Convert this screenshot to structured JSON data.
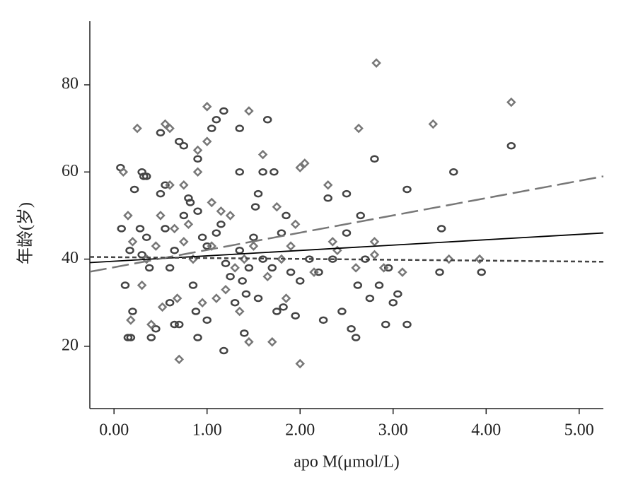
{
  "chart_data": {
    "type": "scatter",
    "x_label": "apo M(μmol/L)",
    "y_label": "年龄(岁)",
    "xlim": [
      -0.26,
      5.26
    ],
    "ylim": [
      5.7,
      94.6
    ],
    "xticks": [
      {
        "value": 0,
        "label": "0.00"
      },
      {
        "value": 1,
        "label": "1.00"
      },
      {
        "value": 2,
        "label": "2.00"
      },
      {
        "value": 3,
        "label": "3.00"
      },
      {
        "value": 4,
        "label": "4.00"
      },
      {
        "value": 5,
        "label": "5.00"
      }
    ],
    "yticks": [
      20,
      40,
      60,
      80
    ],
    "series": [
      {
        "marker": "circle",
        "color": "#444444",
        "x": [
          0.07,
          0.08,
          0.12,
          0.15,
          0.17,
          0.18,
          0.2,
          0.22,
          0.28,
          0.3,
          0.32,
          0.35,
          0.3,
          0.35,
          0.38,
          0.4,
          0.45,
          0.5,
          0.5,
          0.55,
          0.55,
          0.6,
          0.6,
          0.65,
          0.65,
          0.7,
          0.7,
          0.75,
          0.75,
          0.8,
          0.82,
          0.85,
          0.88,
          0.9,
          0.9,
          0.9,
          0.95,
          1.0,
          1.0,
          1.05,
          1.1,
          1.1,
          1.15,
          1.18,
          1.2,
          1.18,
          1.25,
          1.3,
          1.35,
          1.35,
          1.35,
          1.38,
          1.4,
          1.42,
          1.45,
          1.5,
          1.52,
          1.55,
          1.55,
          1.6,
          1.6,
          1.65,
          1.7,
          1.72,
          1.75,
          1.8,
          1.82,
          1.85,
          1.9,
          1.95,
          2.0,
          2.1,
          2.2,
          2.25,
          2.3,
          2.35,
          2.45,
          2.5,
          2.5,
          2.55,
          2.6,
          2.62,
          2.65,
          2.7,
          2.75,
          2.8,
          2.85,
          2.92,
          2.95,
          3.0,
          3.05,
          3.15,
          3.15,
          3.5,
          3.52,
          3.65,
          3.95,
          4.27
        ],
        "values": [
          61,
          47,
          34,
          22,
          42,
          22,
          28,
          56,
          47,
          60,
          59,
          59,
          41,
          45,
          38,
          22,
          24,
          69,
          55,
          57,
          47,
          38,
          30,
          42,
          25,
          67,
          25,
          50,
          66,
          54,
          53,
          34,
          28,
          63,
          51,
          22,
          45,
          43,
          26,
          70,
          72,
          46,
          48,
          74,
          39,
          19,
          36,
          30,
          70,
          60,
          42,
          35,
          23,
          32,
          38,
          45,
          52,
          55,
          31,
          60,
          40,
          72,
          38,
          60,
          28,
          46,
          29,
          50,
          37,
          27,
          35,
          40,
          37,
          26,
          54,
          40,
          28,
          55,
          46,
          24,
          22,
          34,
          50,
          40,
          31,
          63,
          34,
          25,
          38,
          30,
          32,
          56,
          25,
          37,
          47,
          60,
          37,
          66
        ]
      },
      {
        "marker": "diamond",
        "color": "#777777",
        "x": [
          0.1,
          0.15,
          0.18,
          0.2,
          0.25,
          0.3,
          0.35,
          0.4,
          0.45,
          0.5,
          0.52,
          0.55,
          0.6,
          0.6,
          0.65,
          0.68,
          0.7,
          0.75,
          0.75,
          0.8,
          0.85,
          0.9,
          0.9,
          0.95,
          1.0,
          1.0,
          1.05,
          1.05,
          1.1,
          1.15,
          1.2,
          1.25,
          1.3,
          1.35,
          1.4,
          1.45,
          1.45,
          1.5,
          1.6,
          1.65,
          1.7,
          1.75,
          1.8,
          1.85,
          1.9,
          1.95,
          2.0,
          2.0,
          2.05,
          2.15,
          2.3,
          2.35,
          2.4,
          2.6,
          2.63,
          2.8,
          2.8,
          2.82,
          2.9,
          3.1,
          3.43,
          3.6,
          3.93,
          4.27
        ],
        "values": [
          60,
          50,
          26,
          44,
          70,
          34,
          40,
          25,
          43,
          50,
          29,
          71,
          70,
          57,
          47,
          31,
          17,
          57,
          44,
          48,
          40,
          65,
          60,
          30,
          75,
          67,
          53,
          43,
          31,
          51,
          33,
          50,
          38,
          28,
          40,
          74,
          21,
          43,
          64,
          36,
          21,
          52,
          40,
          31,
          43,
          48,
          16,
          61,
          62,
          37,
          57,
          44,
          42,
          38,
          70,
          44,
          41,
          85,
          38,
          37,
          71,
          40,
          40,
          76
        ]
      }
    ],
    "lines": [
      {
        "color": "#000000",
        "style": "solid",
        "x": [
          -0.26,
          5.26
        ],
        "values": [
          39.2,
          46
        ]
      },
      {
        "color": "#777777",
        "style": "long-dash",
        "x": [
          -0.26,
          5.26
        ],
        "values": [
          37.1,
          59.0
        ]
      },
      {
        "color": "#444444",
        "style": "short-dash",
        "x": [
          -0.26,
          5.26
        ],
        "values": [
          40.5,
          39.4
        ]
      }
    ]
  }
}
